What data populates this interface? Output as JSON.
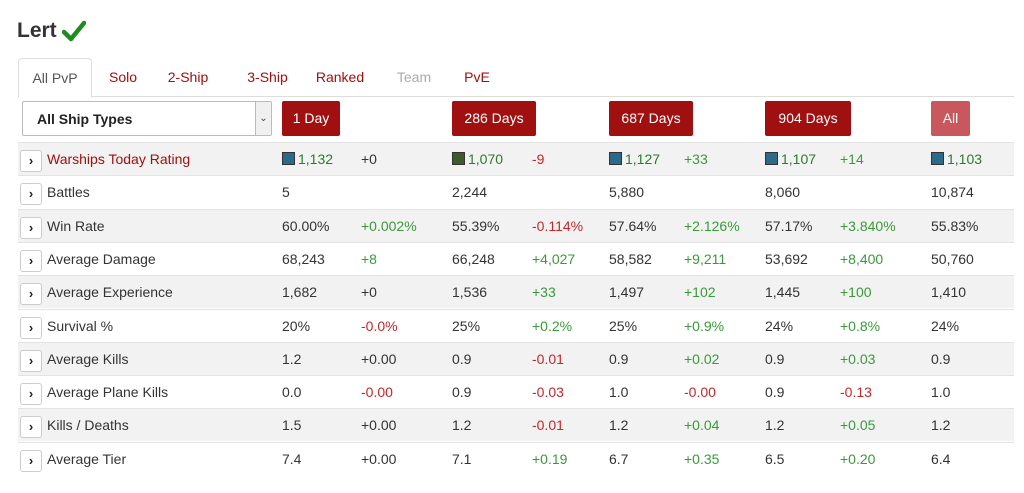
{
  "header": {
    "player_name": "Lert",
    "verified_icon": "check-icon"
  },
  "tabs": [
    {
      "label": "All PvP",
      "state": "active"
    },
    {
      "label": "Solo",
      "state": "normal"
    },
    {
      "label": "2-Ship",
      "state": "normal"
    },
    {
      "label": "3-Ship",
      "state": "normal"
    },
    {
      "label": "Ranked",
      "state": "normal"
    },
    {
      "label": "Team",
      "state": "disabled"
    },
    {
      "label": "PvE",
      "state": "normal"
    }
  ],
  "filter": {
    "ship_type_selected": "All Ship Types",
    "arrow_icon": "chevron-down-icon"
  },
  "periods": [
    {
      "label": "1 Day"
    },
    {
      "label": "286 Days"
    },
    {
      "label": "687 Days"
    },
    {
      "label": "904 Days"
    },
    {
      "label": "All"
    }
  ],
  "colors": {
    "accent": "#a01010",
    "all_button": "#c9585e",
    "positive": "#3a9a3a",
    "negative": "#c0282c",
    "wtr_swatch_dark": "#3d5a2a",
    "wtr_swatch_blue": "#2c6a8a"
  },
  "rows": [
    {
      "label": "Warships Today Rating",
      "label_style": "red",
      "cells": [
        {
          "value": "1,132",
          "delta": "+0",
          "swatch": "#2c6a8a"
        },
        {
          "value": "1,070",
          "delta": "-9",
          "swatch": "#3d5a2a"
        },
        {
          "value": "1,127",
          "delta": "+33",
          "swatch": "#2c6a8a"
        },
        {
          "value": "1,107",
          "delta": "+14",
          "swatch": "#2c6a8a"
        },
        {
          "value": "1,103",
          "delta": "",
          "swatch": "#2c6a8a"
        }
      ]
    },
    {
      "label": "Battles",
      "cells": [
        {
          "value": "5",
          "delta": ""
        },
        {
          "value": "2,244",
          "delta": ""
        },
        {
          "value": "5,880",
          "delta": ""
        },
        {
          "value": "8,060",
          "delta": ""
        },
        {
          "value": "10,874",
          "delta": ""
        }
      ]
    },
    {
      "label": "Win Rate",
      "cells": [
        {
          "value": "60.00%",
          "delta": "+0.002%"
        },
        {
          "value": "55.39%",
          "delta": "-0.114%"
        },
        {
          "value": "57.64%",
          "delta": "+2.126%"
        },
        {
          "value": "57.17%",
          "delta": "+3.840%"
        },
        {
          "value": "55.83%",
          "delta": ""
        }
      ]
    },
    {
      "label": "Average Damage",
      "cells": [
        {
          "value": "68,243",
          "delta": "+8"
        },
        {
          "value": "66,248",
          "delta": "+4,027"
        },
        {
          "value": "58,582",
          "delta": "+9,211"
        },
        {
          "value": "53,692",
          "delta": "+8,400"
        },
        {
          "value": "50,760",
          "delta": ""
        }
      ]
    },
    {
      "label": "Average Experience",
      "cells": [
        {
          "value": "1,682",
          "delta": "+0"
        },
        {
          "value": "1,536",
          "delta": "+33"
        },
        {
          "value": "1,497",
          "delta": "+102"
        },
        {
          "value": "1,445",
          "delta": "+100"
        },
        {
          "value": "1,410",
          "delta": ""
        }
      ]
    },
    {
      "label": "Survival %",
      "cells": [
        {
          "value": "20%",
          "delta": "-0.0%"
        },
        {
          "value": "25%",
          "delta": "+0.2%"
        },
        {
          "value": "25%",
          "delta": "+0.9%"
        },
        {
          "value": "24%",
          "delta": "+0.8%"
        },
        {
          "value": "24%",
          "delta": ""
        }
      ]
    },
    {
      "label": "Average Kills",
      "cells": [
        {
          "value": "1.2",
          "delta": "+0.00"
        },
        {
          "value": "0.9",
          "delta": "-0.01"
        },
        {
          "value": "0.9",
          "delta": "+0.02"
        },
        {
          "value": "0.9",
          "delta": "+0.03"
        },
        {
          "value": "0.9",
          "delta": ""
        }
      ]
    },
    {
      "label": "Average Plane Kills",
      "cells": [
        {
          "value": "0.0",
          "delta": "-0.00"
        },
        {
          "value": "0.9",
          "delta": "-0.03"
        },
        {
          "value": "1.0",
          "delta": "-0.00"
        },
        {
          "value": "0.9",
          "delta": "-0.13"
        },
        {
          "value": "1.0",
          "delta": ""
        }
      ]
    },
    {
      "label": "Kills / Deaths",
      "cells": [
        {
          "value": "1.5",
          "delta": "+0.00"
        },
        {
          "value": "1.2",
          "delta": "-0.01"
        },
        {
          "value": "1.2",
          "delta": "+0.04"
        },
        {
          "value": "1.2",
          "delta": "+0.05"
        },
        {
          "value": "1.2",
          "delta": ""
        }
      ]
    },
    {
      "label": "Average Tier",
      "cells": [
        {
          "value": "7.4",
          "delta": "+0.00"
        },
        {
          "value": "7.1",
          "delta": "+0.19"
        },
        {
          "value": "6.7",
          "delta": "+0.35"
        },
        {
          "value": "6.5",
          "delta": "+0.20"
        },
        {
          "value": "6.4",
          "delta": ""
        }
      ]
    }
  ]
}
